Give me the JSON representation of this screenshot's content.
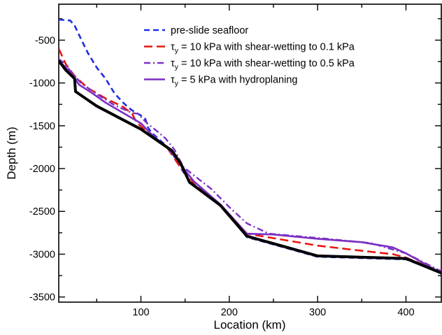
{
  "chart_data": {
    "type": "line",
    "xlabel": "Location (km)",
    "ylabel": "Depth (m)",
    "xlim": [
      7,
      440
    ],
    "ylim": [
      -3560,
      -80
    ],
    "xticks": [
      100,
      200,
      300,
      400
    ],
    "yticks": [
      -500,
      -1000,
      -1500,
      -2000,
      -2500,
      -3000,
      -3500
    ],
    "grid": false,
    "legend_position": "top-right",
    "legend": [
      {
        "series": 0,
        "prefix": "pre-slide seafloor",
        "sym": "",
        "sub": "",
        "suffix": ""
      },
      {
        "series": 1,
        "prefix": "",
        "sym": "τ",
        "sub": "y",
        "suffix": " = 10 kPa with shear-wetting to 0.1 kPa"
      },
      {
        "series": 2,
        "prefix": "",
        "sym": "τ",
        "sub": "y",
        "suffix": " = 10 kPa with shear-wetting to 0.5 kPa"
      },
      {
        "series": 3,
        "prefix": "",
        "sym": "τ",
        "sub": "y",
        "suffix": " = 5 kPa with hydroplaning"
      }
    ],
    "series": [
      {
        "name": "pre-slide seafloor",
        "color": "#1f2ee0",
        "dash": "8,5",
        "width": 2.6,
        "points": [
          [
            7,
            -260
          ],
          [
            20,
            -270
          ],
          [
            25,
            -330
          ],
          [
            30,
            -440
          ],
          [
            40,
            -650
          ],
          [
            50,
            -820
          ],
          [
            60,
            -950
          ],
          [
            70,
            -1120
          ],
          [
            80,
            -1230
          ],
          [
            85,
            -1280
          ],
          [
            90,
            -1320
          ],
          [
            100,
            -1380
          ],
          [
            105,
            -1420
          ],
          [
            108,
            -1520
          ],
          [
            112,
            -1580
          ],
          [
            125,
            -1700
          ],
          [
            135,
            -1810
          ],
          [
            145,
            -1990
          ],
          [
            155,
            -2150
          ],
          [
            190,
            -2420
          ],
          [
            220,
            -2800
          ],
          [
            300,
            -3030
          ],
          [
            400,
            -3060
          ],
          [
            440,
            -3220
          ]
        ]
      },
      {
        "name": "τy = 10 kPa with shear-wetting to 0.1 kPa",
        "color": "#e8160d",
        "dash": "12,6",
        "width": 2.6,
        "points": [
          [
            7,
            -600
          ],
          [
            15,
            -780
          ],
          [
            25,
            -920
          ],
          [
            40,
            -1060
          ],
          [
            60,
            -1180
          ],
          [
            80,
            -1280
          ],
          [
            90,
            -1360
          ],
          [
            95,
            -1460
          ],
          [
            110,
            -1600
          ],
          [
            130,
            -1760
          ],
          [
            145,
            -1990
          ],
          [
            155,
            -2100
          ],
          [
            160,
            -2180
          ],
          [
            190,
            -2420
          ],
          [
            220,
            -2760
          ],
          [
            300,
            -2900
          ],
          [
            350,
            -2960
          ],
          [
            385,
            -3000
          ],
          [
            400,
            -3040
          ],
          [
            440,
            -3210
          ]
        ]
      },
      {
        "name": "τy = 10 kPa with shear-wetting to 0.5 kPa",
        "color": "#7b2fc4",
        "dash": "9,4,2,4",
        "width": 2.4,
        "points": [
          [
            7,
            -720
          ],
          [
            12,
            -760
          ],
          [
            22,
            -880
          ],
          [
            32,
            -1000
          ],
          [
            50,
            -1130
          ],
          [
            70,
            -1260
          ],
          [
            90,
            -1350
          ],
          [
            97,
            -1360
          ],
          [
            102,
            -1420
          ],
          [
            108,
            -1480
          ],
          [
            118,
            -1560
          ],
          [
            128,
            -1650
          ],
          [
            138,
            -1780
          ],
          [
            148,
            -1980
          ],
          [
            160,
            -2080
          ],
          [
            180,
            -2240
          ],
          [
            200,
            -2450
          ],
          [
            220,
            -2640
          ],
          [
            245,
            -2760
          ],
          [
            300,
            -2810
          ],
          [
            360,
            -2870
          ],
          [
            400,
            -2990
          ],
          [
            440,
            -3200
          ]
        ]
      },
      {
        "name": "τy = 5 kPa with hydroplaning",
        "color": "#7b2fc4",
        "dash": "",
        "width": 2.6,
        "points": [
          [
            7,
            -740
          ],
          [
            15,
            -820
          ],
          [
            22,
            -900
          ],
          [
            30,
            -1020
          ],
          [
            45,
            -1120
          ],
          [
            60,
            -1230
          ],
          [
            80,
            -1350
          ],
          [
            100,
            -1470
          ],
          [
            110,
            -1580
          ],
          [
            130,
            -1760
          ],
          [
            140,
            -1880
          ],
          [
            150,
            -2020
          ],
          [
            160,
            -2150
          ],
          [
            190,
            -2420
          ],
          [
            220,
            -2760
          ],
          [
            250,
            -2770
          ],
          [
            300,
            -2820
          ],
          [
            350,
            -2860
          ],
          [
            385,
            -2920
          ],
          [
            400,
            -2990
          ],
          [
            440,
            -3220
          ]
        ]
      },
      {
        "name": "",
        "color": "#000000",
        "dash": "",
        "width": 4,
        "points": [
          [
            7,
            -740
          ],
          [
            15,
            -850
          ],
          [
            25,
            -950
          ],
          [
            26,
            -1100
          ],
          [
            50,
            -1270
          ],
          [
            100,
            -1540
          ],
          [
            135,
            -1790
          ],
          [
            145,
            -1940
          ],
          [
            155,
            -2160
          ],
          [
            190,
            -2430
          ],
          [
            220,
            -2790
          ],
          [
            300,
            -3020
          ],
          [
            400,
            -3050
          ],
          [
            440,
            -3220
          ]
        ]
      }
    ]
  }
}
